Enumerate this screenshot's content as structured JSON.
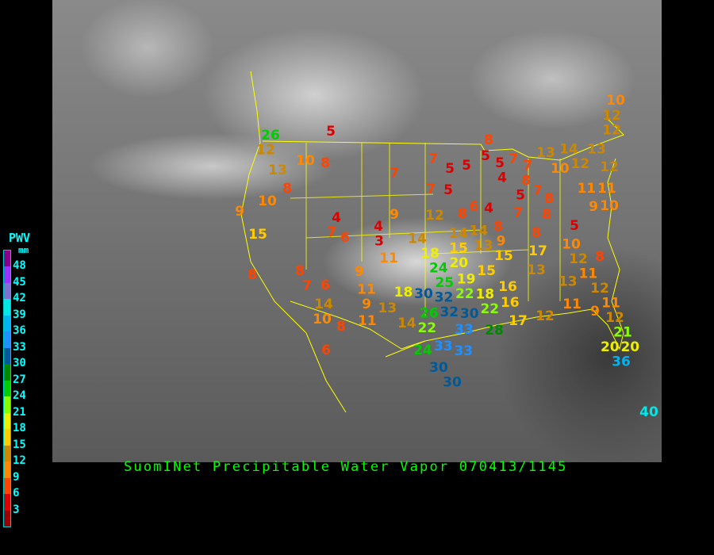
{
  "title": "SuomINet Precipitable Water Vapor 070413/1145",
  "legend": {
    "title": "PWV",
    "unit": "mm",
    "labels": [
      "48",
      "45",
      "42",
      "39",
      "36",
      "33",
      "30",
      "27",
      "24",
      "21",
      "18",
      "15",
      "12",
      "9",
      "6",
      "3"
    ],
    "colors_low_to_high": [
      "#9a0000",
      "#dd0000",
      "#ff4400",
      "#ff8800",
      "#cc8800",
      "#ffcc00",
      "#eeee00",
      "#88ff00",
      "#00cc00",
      "#008800",
      "#005a99",
      "#1e90ff",
      "#00b4f0",
      "#00e8e8",
      "#8070d0",
      "#9933ff",
      "#880088"
    ],
    "bin_mm": 3
  },
  "stations": [
    26,
    12,
    13,
    10,
    8,
    5,
    8,
    10,
    9,
    15,
    8,
    8,
    7,
    6,
    4,
    7,
    6,
    4,
    3,
    7,
    9,
    11,
    9,
    11,
    9,
    13,
    11,
    14,
    10,
    8,
    6,
    7,
    5,
    5,
    7,
    5,
    12,
    8,
    6,
    4,
    14,
    18,
    20,
    15,
    14,
    14,
    13,
    9,
    8,
    7,
    5,
    7,
    8,
    8,
    8,
    8,
    5,
    5,
    4,
    7,
    7,
    8,
    13,
    14,
    12,
    10,
    13,
    10,
    12,
    12,
    12,
    11,
    11,
    9,
    10,
    5,
    8,
    10,
    12,
    13,
    11,
    17,
    13,
    15,
    15,
    16,
    16,
    19,
    24,
    25,
    30,
    32,
    22,
    18,
    32,
    30,
    22,
    26,
    22,
    14,
    18,
    33,
    28,
    17,
    12,
    11,
    9,
    12,
    11,
    12,
    21,
    20,
    20,
    36,
    24,
    33,
    33,
    30,
    30,
    40
  ]
}
